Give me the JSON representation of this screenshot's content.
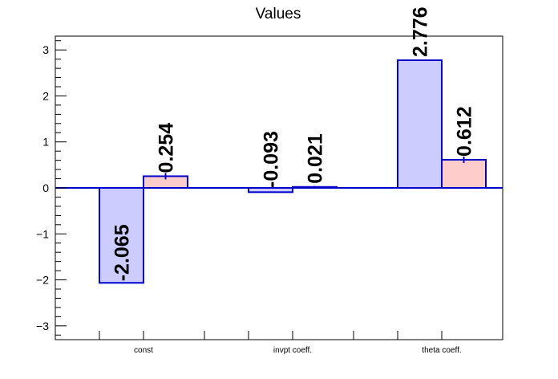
{
  "chart_data": {
    "type": "bar",
    "title": "Values",
    "categories": [
      "const",
      "invpt coeff.",
      "theta coeff."
    ],
    "series": [
      {
        "values": [
          -2.065,
          -0.093,
          2.776
        ],
        "value_labels": [
          "-2.065",
          "-0.093",
          "2.776"
        ],
        "errors": [
          0.0,
          0.0,
          0.0
        ],
        "fill": "#ccccff",
        "stroke": "#0000cc"
      },
      {
        "values": [
          0.254,
          0.021,
          0.612
        ],
        "value_labels": [
          "0.254",
          "0.021",
          "0.612"
        ],
        "errors": [
          0.07,
          0.02,
          0.07
        ],
        "fill": "#ffcccc",
        "stroke": "#0000cc"
      }
    ],
    "ylim": [
      -3.3,
      3.3
    ],
    "yticks": [
      -3,
      -2,
      -1,
      0,
      1,
      2,
      3
    ],
    "ytick_labels": [
      "−3",
      "−2",
      "−1",
      "0",
      "1",
      "2",
      "3"
    ],
    "grid": false,
    "legend": "none",
    "zero_line_color": "#0000cc"
  }
}
